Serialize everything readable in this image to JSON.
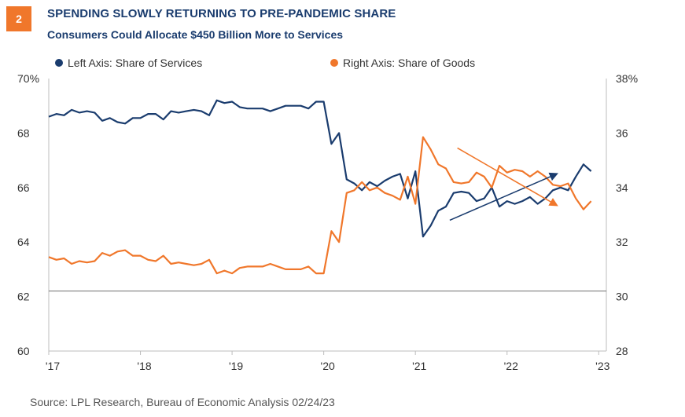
{
  "badge": "2",
  "header": {
    "title": "SPENDING SLOWLY RETURNING TO PRE-PANDEMIC SHARE",
    "subtitle": "Consumers Could Allocate $450 Billion More to Services"
  },
  "legend": [
    {
      "label": "Left Axis: Share of Services",
      "color": "#1a3c6e"
    },
    {
      "label": "Right Axis: Share of Goods",
      "color": "#f0772b"
    }
  ],
  "source": "Source: LPL Research, Bureau of Economic Analysis 02/24/23",
  "chart_data": {
    "type": "line",
    "x_tick_labels": [
      "'17",
      "'18",
      "'19",
      "'20",
      "'21",
      "'22",
      "'23"
    ],
    "x_range": [
      0,
      73
    ],
    "left_axis": {
      "ticks": [
        "70%",
        "68",
        "66",
        "64",
        "62",
        "60"
      ],
      "range": [
        60,
        70
      ]
    },
    "right_axis": {
      "ticks": [
        "38%",
        "36",
        "34",
        "32",
        "30",
        "28"
      ],
      "range": [
        28,
        38
      ]
    },
    "reference_line_left_value": 62.2,
    "series": [
      {
        "name": "Left Axis: Share of Services",
        "axis": "left",
        "color": "#1a3c6e",
        "values": [
          68.6,
          68.7,
          68.65,
          68.85,
          68.75,
          68.8,
          68.75,
          68.45,
          68.55,
          68.4,
          68.35,
          68.55,
          68.55,
          68.7,
          68.7,
          68.5,
          68.8,
          68.75,
          68.8,
          68.85,
          68.8,
          68.65,
          69.2,
          69.1,
          69.15,
          68.95,
          68.9,
          68.9,
          68.9,
          68.8,
          68.9,
          69.0,
          69.0,
          69.0,
          68.9,
          69.15,
          69.15,
          67.6,
          68.0,
          66.3,
          66.15,
          65.9,
          66.2,
          66.05,
          66.25,
          66.4,
          66.5,
          65.6,
          66.6,
          64.2,
          64.6,
          65.15,
          65.3,
          65.8,
          65.85,
          65.8,
          65.5,
          65.6,
          66.0,
          65.3,
          65.5,
          65.4,
          65.5,
          65.65,
          65.4,
          65.6,
          65.9,
          66.0,
          65.9,
          66.4,
          66.85,
          66.6
        ]
      },
      {
        "name": "Right Axis: Share of Goods",
        "axis": "right",
        "color": "#f0772b",
        "values": [
          31.45,
          31.35,
          31.4,
          31.2,
          31.3,
          31.25,
          31.3,
          31.6,
          31.5,
          31.65,
          31.7,
          31.5,
          31.5,
          31.35,
          31.3,
          31.5,
          31.2,
          31.25,
          31.2,
          31.15,
          31.2,
          31.35,
          30.85,
          30.95,
          30.85,
          31.05,
          31.1,
          31.1,
          31.1,
          31.2,
          31.1,
          31.0,
          31.0,
          31.0,
          31.1,
          30.85,
          30.85,
          32.4,
          32.0,
          33.8,
          33.9,
          34.2,
          33.9,
          34.0,
          33.8,
          33.7,
          33.55,
          34.4,
          33.4,
          35.85,
          35.4,
          34.85,
          34.7,
          34.2,
          34.15,
          34.2,
          34.55,
          34.4,
          34.0,
          34.8,
          34.55,
          34.65,
          34.6,
          34.4,
          34.6,
          34.4,
          34.1,
          34.05,
          34.15,
          33.6,
          33.2,
          33.5
        ]
      }
    ],
    "trend_lines": [
      {
        "color": "#1a3c6e",
        "axis": "left",
        "from": [
          52.5,
          64.8
        ],
        "to": [
          66.5,
          66.5
        ]
      },
      {
        "color": "#f0772b",
        "axis": "right",
        "from": [
          53.5,
          35.45
        ],
        "to": [
          66.5,
          33.35
        ]
      }
    ],
    "grid": false,
    "legend_position": "top-left"
  }
}
